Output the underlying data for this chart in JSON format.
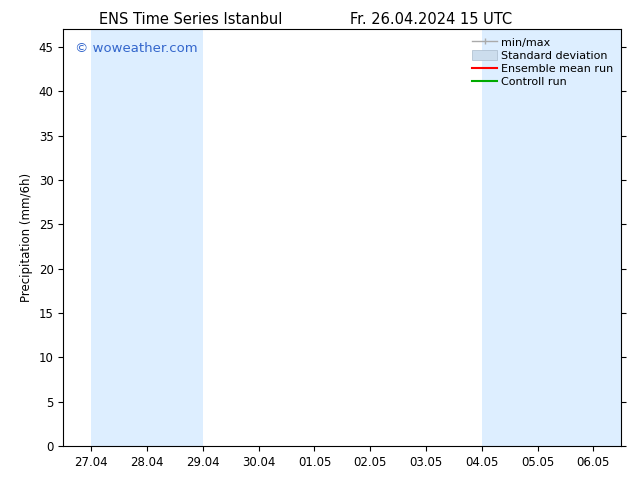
{
  "title_left": "ENS Time Series Istanbul",
  "title_right": "Fr. 26.04.2024 15 UTC",
  "ylabel": "Precipitation (mm/6h)",
  "watermark": "© woweather.com",
  "watermark_color": "#3366cc",
  "ylim": [
    0,
    47
  ],
  "yticks": [
    0,
    5,
    10,
    15,
    20,
    25,
    30,
    35,
    40,
    45
  ],
  "xtick_labels": [
    "27.04",
    "28.04",
    "29.04",
    "30.04",
    "01.05",
    "02.05",
    "03.05",
    "04.05",
    "05.05",
    "06.05"
  ],
  "xtick_positions": [
    0,
    1,
    2,
    3,
    4,
    5,
    6,
    7,
    8,
    9
  ],
  "shaded_ranges": [
    [
      0.0,
      1.0
    ],
    [
      1.0,
      2.0
    ],
    [
      7.0,
      8.0
    ],
    [
      8.0,
      9.0
    ],
    [
      9.0,
      9.5
    ]
  ],
  "shaded_color": "#ddeeff",
  "bg_color": "#ffffff",
  "legend_items": [
    {
      "label": "min/max",
      "color": "#aaaaaa"
    },
    {
      "label": "Standard deviation",
      "color": "#ccdded"
    },
    {
      "label": "Ensemble mean run",
      "color": "#ff0000"
    },
    {
      "label": "Controll run",
      "color": "#00aa00"
    }
  ],
  "font_size": 8.5,
  "title_font_size": 10.5
}
